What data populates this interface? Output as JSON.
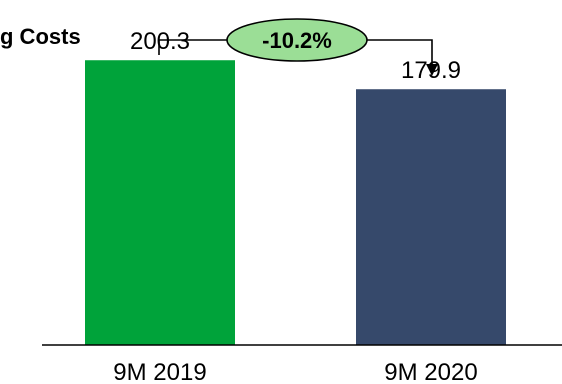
{
  "chart_data": {
    "type": "bar",
    "title": "g Costs",
    "categories": [
      "9M 2019",
      "9M 2020"
    ],
    "values": [
      200.3,
      179.9
    ],
    "value_labels": [
      "200.3",
      "179.9"
    ],
    "bar_colors": [
      "#00A33A",
      "#36496B"
    ],
    "change_label": "-10.2%",
    "change_badge_color": "#9BDE96",
    "ylim": [
      0,
      230
    ],
    "xlabel": "",
    "ylabel": "",
    "grid": false,
    "legend": "none"
  }
}
